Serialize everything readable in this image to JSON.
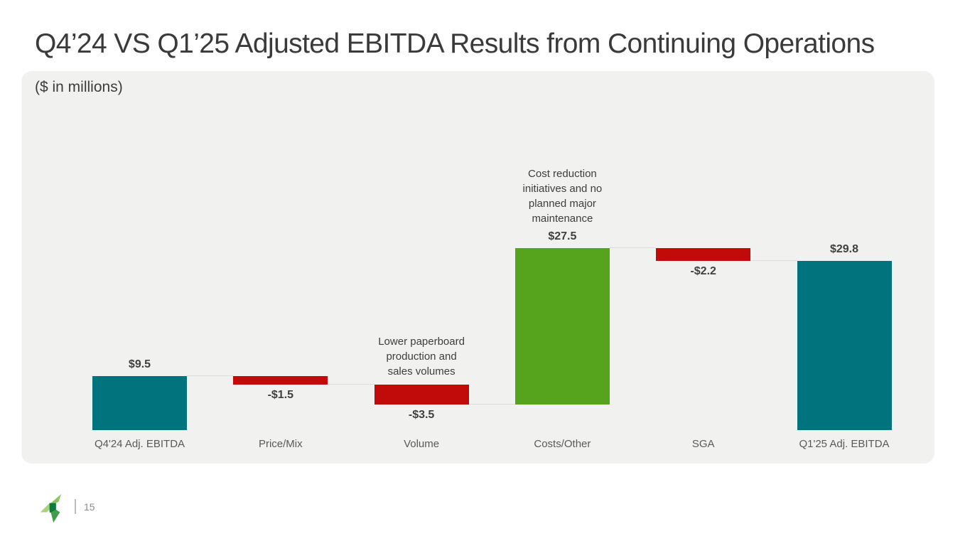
{
  "header": {
    "title": "Q4’24 VS Q1’25 Adjusted EBITDA Results from Continuing Operations"
  },
  "panel": {
    "units_label": "($ in millions)"
  },
  "chart_data": {
    "type": "bar",
    "subtype": "waterfall",
    "title": "Q4'24 vs Q1'25 Adjusted EBITDA bridge",
    "unit": "$ in millions",
    "categories": [
      "Q4'24 Adj. EBITDA",
      "Price/Mix",
      "Volume",
      "Costs/Other",
      "SGA",
      "Q1'25 Adj. EBITDA"
    ],
    "values": [
      9.5,
      -1.5,
      -3.5,
      27.5,
      -2.2,
      29.8
    ],
    "bar_roles": [
      "total",
      "delta",
      "delta",
      "delta",
      "delta",
      "total"
    ],
    "value_labels": [
      "$9.5",
      "-$1.5",
      "-$3.5",
      "$27.5",
      "-$2.2",
      "$29.8"
    ],
    "running_totals": [
      9.5,
      8.0,
      4.5,
      32.0,
      29.8,
      29.8
    ],
    "annotations": [
      {
        "index": 2,
        "lines": [
          "Lower paperboard",
          "production and",
          "sales volumes"
        ]
      },
      {
        "index": 3,
        "lines": [
          "Cost reduction",
          "initiatives and no",
          "planned major",
          "maintenance"
        ]
      }
    ],
    "ylim": [
      0,
      34
    ],
    "grid": false,
    "legend": false,
    "axis_labels": "categories only, no y-axis shown",
    "colors": {
      "total": "#00737c",
      "increase": "#56a41d",
      "decrease": "#c10a0a",
      "connector": "#dcdcda"
    }
  },
  "footer": {
    "logo_icon": "green-pinwheel-logo",
    "divider": "|",
    "page_number": "15"
  }
}
